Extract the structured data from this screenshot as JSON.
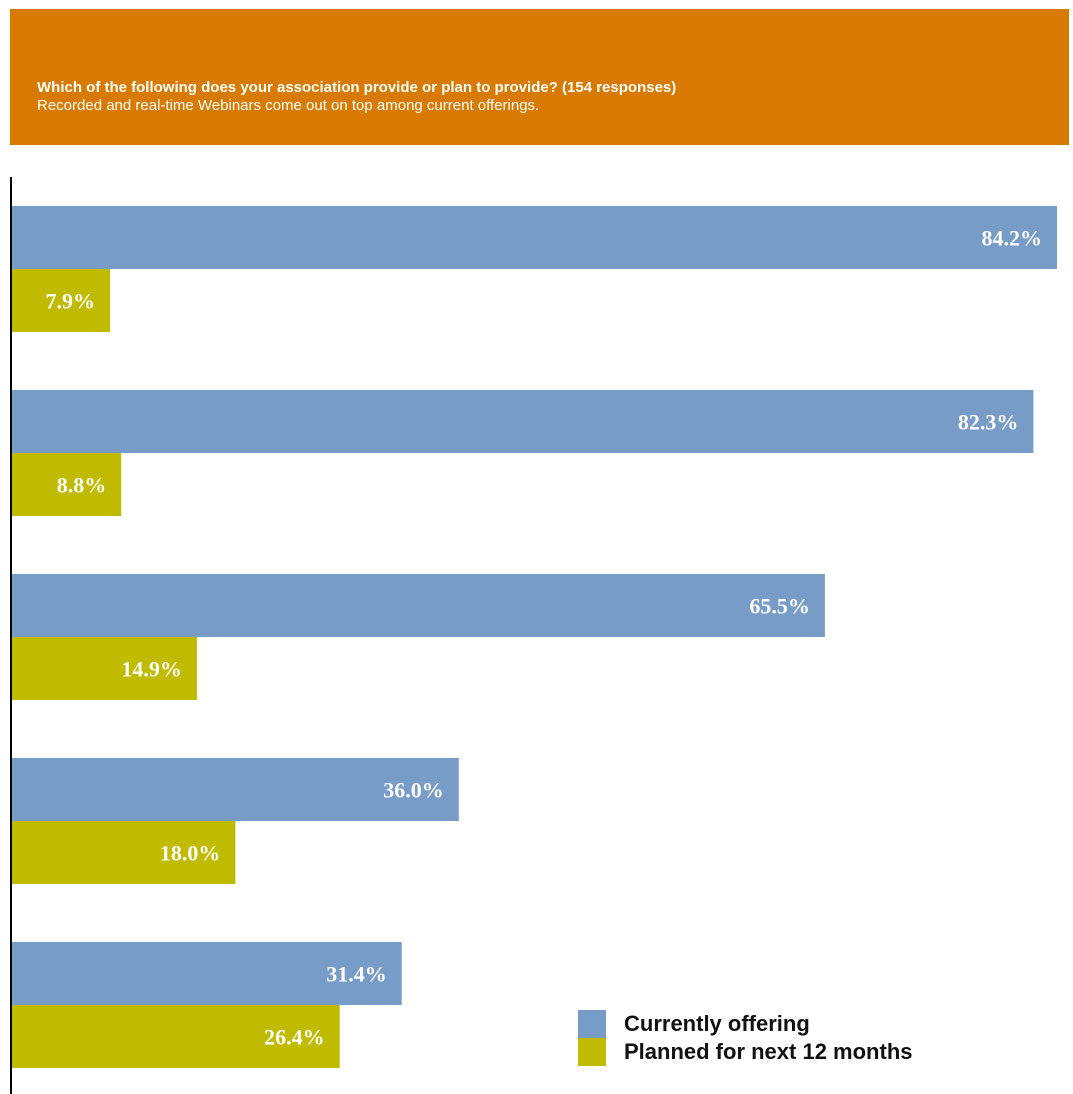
{
  "header": {
    "question": "Which of the following does your association provide or plan to provide? (154 responses)",
    "subtitle": "Recorded and real-time Webinars come out on top among current offerings."
  },
  "colors": {
    "header_bg": "#d87a00",
    "current": "#789cc8",
    "planned": "#c1bb00",
    "axis": "#000000"
  },
  "chart_data": {
    "type": "bar",
    "orientation": "horizontal",
    "title": "",
    "xlabel": "",
    "ylabel": "",
    "categories": [
      "",
      "",
      "",
      "",
      ""
    ],
    "xlim": [
      0,
      85
    ],
    "grid": false,
    "legend_position": "bottom-right",
    "series": [
      {
        "name": "Currently offering",
        "values": [
          84.2,
          82.3,
          65.5,
          36.0,
          31.4
        ],
        "labels": [
          "84.2%",
          "82.3%",
          "65.5%",
          "36.0%",
          "31.4%"
        ]
      },
      {
        "name": "Planned for next 12 months",
        "values": [
          7.9,
          8.8,
          14.9,
          18.0,
          26.4
        ],
        "labels": [
          "7.9%",
          "8.8%",
          "14.9%",
          "18.0%",
          "26.4%"
        ]
      }
    ]
  },
  "legend": {
    "items": [
      "Currently offering",
      "Planned for next 12 months"
    ]
  }
}
